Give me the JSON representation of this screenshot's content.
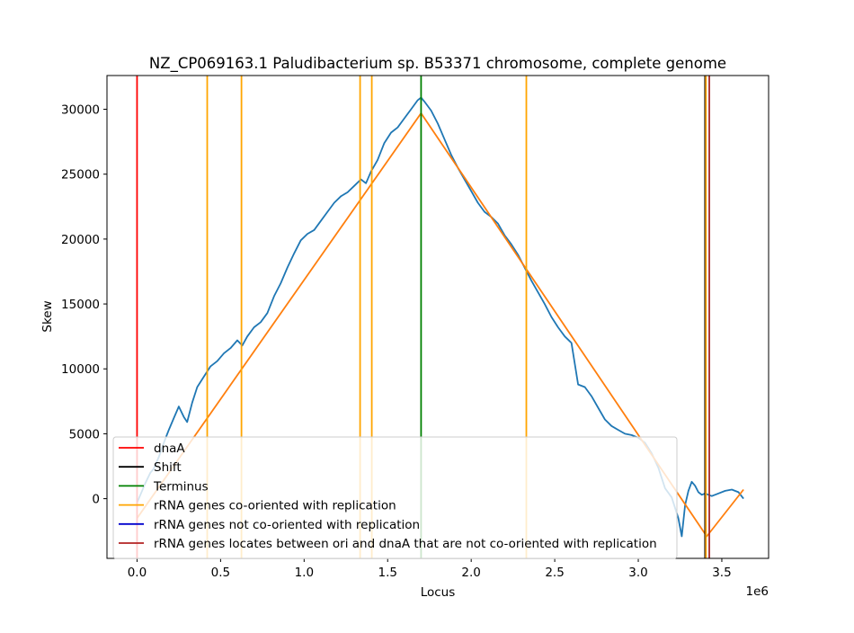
{
  "chart_data": {
    "type": "line",
    "title": "NZ_CP069163.1 Paludibacterium sp. B53371 chromosome, complete genome",
    "xlabel": "Locus",
    "ylabel": "Skew",
    "x_offset_text": "1e6",
    "xlim": [
      -0.18,
      3.78
    ],
    "ylim": [
      -4600,
      32600
    ],
    "x_scale": 1000000,
    "x_ticks": [
      0.0,
      0.5,
      1.0,
      1.5,
      2.0,
      2.5,
      3.0,
      3.5
    ],
    "x_tick_labels": [
      "0.0",
      "0.5",
      "1.0",
      "1.5",
      "2.0",
      "2.5",
      "3.0",
      "3.5"
    ],
    "y_ticks": [
      0,
      5000,
      10000,
      15000,
      20000,
      25000,
      30000
    ],
    "y_tick_labels": [
      "0",
      "5000",
      "10000",
      "15000",
      "20000",
      "25000",
      "30000"
    ],
    "grid": false,
    "legend_position": "lower-left",
    "series": [
      {
        "role": "skew",
        "color": "#1f77b4",
        "x": [
          0.0,
          0.02,
          0.05,
          0.08,
          0.1,
          0.13,
          0.16,
          0.19,
          0.22,
          0.25,
          0.28,
          0.3,
          0.33,
          0.36,
          0.4,
          0.44,
          0.48,
          0.52,
          0.56,
          0.6,
          0.63,
          0.66,
          0.7,
          0.74,
          0.78,
          0.82,
          0.86,
          0.9,
          0.94,
          0.98,
          1.02,
          1.06,
          1.1,
          1.14,
          1.18,
          1.22,
          1.26,
          1.3,
          1.34,
          1.37,
          1.4,
          1.44,
          1.48,
          1.52,
          1.56,
          1.6,
          1.64,
          1.68,
          1.7,
          1.72,
          1.76,
          1.8,
          1.84,
          1.88,
          1.92,
          1.96,
          2.0,
          2.04,
          2.08,
          2.12,
          2.16,
          2.2,
          2.24,
          2.28,
          2.32,
          2.36,
          2.4,
          2.44,
          2.48,
          2.52,
          2.56,
          2.6,
          2.64,
          2.68,
          2.72,
          2.76,
          2.8,
          2.84,
          2.88,
          2.92,
          2.96,
          3.0,
          3.04,
          3.08,
          3.12,
          3.16,
          3.2,
          3.24,
          3.26,
          3.28,
          3.3,
          3.32,
          3.34,
          3.36,
          3.38,
          3.4,
          3.42,
          3.44,
          3.48,
          3.52,
          3.56,
          3.6,
          3.63
        ],
        "y": [
          -300,
          300,
          1200,
          2000,
          2300,
          3200,
          4300,
          5300,
          6200,
          7100,
          6300,
          5900,
          7400,
          8600,
          9400,
          10200,
          10600,
          11200,
          11600,
          12200,
          11800,
          12500,
          13200,
          13600,
          14300,
          15600,
          16600,
          17800,
          18900,
          19900,
          20400,
          20700,
          21400,
          22100,
          22800,
          23300,
          23600,
          24100,
          24600,
          24300,
          25200,
          26100,
          27400,
          28200,
          28600,
          29300,
          30000,
          30700,
          30900,
          30600,
          29900,
          28900,
          27700,
          26500,
          25500,
          24600,
          23700,
          22800,
          22100,
          21700,
          21200,
          20300,
          19600,
          18800,
          17800,
          16800,
          15900,
          15000,
          14000,
          13200,
          12500,
          12000,
          8800,
          8600,
          7900,
          7000,
          6100,
          5600,
          5300,
          5000,
          4900,
          4700,
          4300,
          3500,
          2400,
          800,
          100,
          -1500,
          -2900,
          -500,
          600,
          1300,
          1000,
          500,
          300,
          400,
          300,
          200,
          400,
          600,
          700,
          500,
          0
        ]
      },
      {
        "role": "fit",
        "color": "#ff7f0e",
        "x": [
          0.0,
          1.7,
          3.41,
          3.63
        ],
        "y": [
          -1500,
          29700,
          -2900,
          700
        ]
      }
    ],
    "vlines": [
      {
        "x": 0.0,
        "color": "#ff0000",
        "label": "dnaA"
      },
      {
        "x": 3.4,
        "color": "#000000",
        "label": "Shift"
      },
      {
        "x": 1.7,
        "color": "#008000",
        "label": "Terminus"
      },
      {
        "x": 0.42,
        "color": "#ffa500",
        "label": "rRNA genes co-oriented with replication"
      },
      {
        "x": 0.625,
        "color": "#ffa500",
        "label": ""
      },
      {
        "x": 1.335,
        "color": "#ffa500",
        "label": ""
      },
      {
        "x": 1.405,
        "color": "#ffa500",
        "label": ""
      },
      {
        "x": 2.33,
        "color": "#ffa500",
        "label": ""
      },
      {
        "x": 3.405,
        "color": "#ffa500",
        "label": ""
      },
      {
        "x": 3.425,
        "color": "#a52a2a",
        "label": ""
      }
    ],
    "legend": [
      {
        "label": "dnaA",
        "color": "#ff0000"
      },
      {
        "label": "Shift",
        "color": "#000000"
      },
      {
        "label": "Terminus",
        "color": "#008000"
      },
      {
        "label": "rRNA genes co-oriented with replication",
        "color": "#ffa500"
      },
      {
        "label": "rRNA genes not co-oriented with replication",
        "color": "#0000cd"
      },
      {
        "label": "rRNA genes locates between ori and dnaA that are not co-oriented with replication",
        "color": "#b22222"
      }
    ]
  }
}
